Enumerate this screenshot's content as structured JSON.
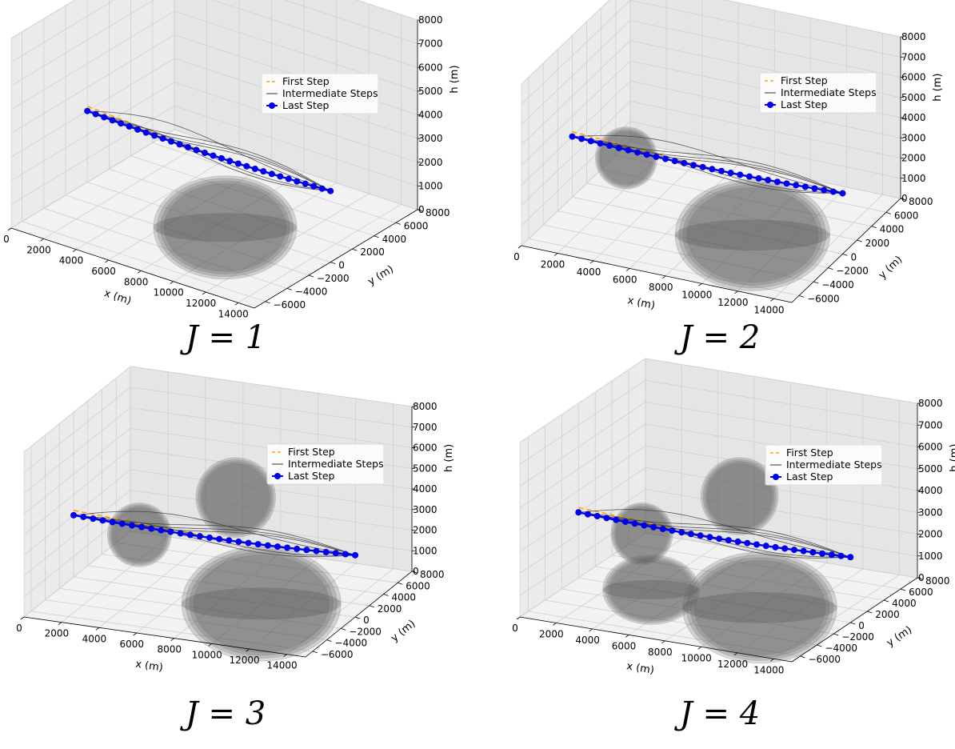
{
  "chart_data": [
    {
      "type": "line3d",
      "caption": "J = 1",
      "xlabel": "x (m)",
      "ylabel": "y (m)",
      "zlabel": "h (m)",
      "xlim": [
        0,
        15000
      ],
      "ylim": [
        -7000,
        8000
      ],
      "zlim": [
        0,
        8000
      ],
      "xticks": [
        "0",
        "2000",
        "4000",
        "6000",
        "8000",
        "10000",
        "12000",
        "14000"
      ],
      "yticks": [
        "−6000",
        "−4000",
        "−2000",
        "0",
        "2000",
        "4000",
        "6000",
        "8000"
      ],
      "zticks": [
        "0",
        "1000",
        "2000",
        "3000",
        "4000",
        "5000",
        "6000",
        "7000",
        "8000"
      ],
      "legend": [
        "First Step",
        "Intermediate Steps",
        "Last Step"
      ],
      "spheres": [
        {
          "x": 8500,
          "y": 0,
          "h": 0,
          "r": 4000
        }
      ],
      "last_step": {
        "x": [
          0,
          15000
        ],
        "y": [
          0,
          0
        ],
        "h": [
          3000,
          3000
        ],
        "points": 30
      }
    },
    {
      "type": "line3d",
      "caption": "J = 2",
      "xlabel": "x (m)",
      "ylabel": "y (m)",
      "zlabel": "h (m)",
      "xlim": [
        0,
        15000
      ],
      "ylim": [
        -7000,
        8000
      ],
      "zlim": [
        0,
        8000
      ],
      "xticks": [
        "0",
        "2000",
        "4000",
        "6000",
        "8000",
        "10000",
        "12000",
        "14000"
      ],
      "yticks": [
        "−6000",
        "−4000",
        "−2000",
        "0",
        "2000",
        "4000",
        "6000",
        "8000"
      ],
      "zticks": [
        "0",
        "1000",
        "2000",
        "3000",
        "4000",
        "5000",
        "6000",
        "7000",
        "8000"
      ],
      "legend": [
        "First Step",
        "Intermediate Steps",
        "Last Step"
      ],
      "spheres": [
        {
          "x": 3000,
          "y": 0,
          "h": 2500,
          "r": 1600
        },
        {
          "x": 10000,
          "y": 0,
          "h": 0,
          "r": 4000
        }
      ],
      "last_step": {
        "x": [
          0,
          15000
        ],
        "y": [
          0,
          0
        ],
        "h": [
          3000,
          3000
        ],
        "points": 30
      }
    },
    {
      "type": "line3d",
      "caption": "J = 3",
      "xlabel": "x (m)",
      "ylabel": "y (m)",
      "zlabel": "h (m)",
      "xlim": [
        0,
        15000
      ],
      "ylim": [
        -7000,
        8000
      ],
      "zlim": [
        0,
        8000
      ],
      "xticks": [
        "0",
        "2000",
        "4000",
        "6000",
        "8000",
        "10000",
        "12000",
        "14000"
      ],
      "yticks": [
        "−6000",
        "−4000",
        "−2000",
        "0",
        "2000",
        "4000",
        "6000",
        "8000"
      ],
      "zticks": [
        "0",
        "1000",
        "2000",
        "3000",
        "4000",
        "5000",
        "6000",
        "7000",
        "8000"
      ],
      "legend": [
        "First Step",
        "Intermediate Steps",
        "Last Step"
      ],
      "spheres": [
        {
          "x": 3500,
          "y": 0,
          "h": 2500,
          "r": 1600
        },
        {
          "x": 7500,
          "y": 3000,
          "h": 4000,
          "r": 2000
        },
        {
          "x": 10000,
          "y": 0,
          "h": 0,
          "r": 4000
        }
      ],
      "last_step": {
        "x": [
          0,
          15000
        ],
        "y": [
          0,
          0
        ],
        "h": [
          3000,
          3000
        ],
        "points": 30
      }
    },
    {
      "type": "line3d",
      "caption": "J = 4",
      "xlabel": "x (m)",
      "ylabel": "y (m)",
      "zlabel": "h (m)",
      "xlim": [
        0,
        15000
      ],
      "ylim": [
        -7000,
        8000
      ],
      "zlim": [
        0,
        8000
      ],
      "xticks": [
        "0",
        "2000",
        "4000",
        "6000",
        "8000",
        "10000",
        "12000",
        "14000"
      ],
      "yticks": [
        "−6000",
        "−4000",
        "−2000",
        "0",
        "2000",
        "4000",
        "6000",
        "8000"
      ],
      "zticks": [
        "0",
        "1000",
        "2000",
        "3000",
        "4000",
        "5000",
        "6000",
        "7000",
        "8000"
      ],
      "legend": [
        "First Step",
        "Intermediate Steps",
        "Last Step"
      ],
      "spheres": [
        {
          "x": 3500,
          "y": 0,
          "h": 2500,
          "r": 1600
        },
        {
          "x": 7500,
          "y": 3000,
          "h": 4000,
          "r": 2000
        },
        {
          "x": 4000,
          "y": 0,
          "h": 0,
          "r": 2500
        },
        {
          "x": 10000,
          "y": 0,
          "h": 0,
          "r": 4000
        }
      ],
      "last_step": {
        "x": [
          0,
          15000
        ],
        "y": [
          0,
          0
        ],
        "h": [
          3000,
          3000
        ],
        "points": 30
      }
    }
  ],
  "colors": {
    "first_step": "#ffa500",
    "intermediate": "#333333",
    "last_step": "#0000ee",
    "sphere": "#555555"
  }
}
